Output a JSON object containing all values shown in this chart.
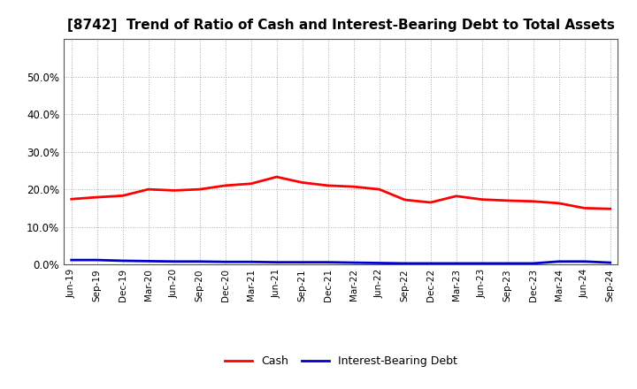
{
  "title": "[8742]  Trend of Ratio of Cash and Interest-Bearing Debt to Total Assets",
  "x_labels": [
    "Jun-19",
    "Sep-19",
    "Dec-19",
    "Mar-20",
    "Jun-20",
    "Sep-20",
    "Dec-20",
    "Mar-21",
    "Jun-21",
    "Sep-21",
    "Dec-21",
    "Mar-22",
    "Jun-22",
    "Sep-22",
    "Dec-22",
    "Mar-23",
    "Jun-23",
    "Sep-23",
    "Dec-23",
    "Mar-24",
    "Jun-24",
    "Sep-24"
  ],
  "cash": [
    0.174,
    0.179,
    0.183,
    0.2,
    0.197,
    0.2,
    0.21,
    0.215,
    0.233,
    0.218,
    0.21,
    0.207,
    0.2,
    0.172,
    0.165,
    0.182,
    0.173,
    0.17,
    0.168,
    0.163,
    0.15,
    0.148
  ],
  "debt": [
    0.012,
    0.012,
    0.01,
    0.009,
    0.008,
    0.008,
    0.007,
    0.007,
    0.006,
    0.006,
    0.006,
    0.005,
    0.004,
    0.003,
    0.003,
    0.003,
    0.003,
    0.003,
    0.003,
    0.008,
    0.008,
    0.005
  ],
  "cash_color": "#ff0000",
  "debt_color": "#0000cc",
  "ylim": [
    0.0,
    0.6
  ],
  "yticks": [
    0.0,
    0.1,
    0.2,
    0.3,
    0.4,
    0.5
  ],
  "background_color": "#ffffff",
  "grid_color": "#aaaaaa",
  "title_fontsize": 11,
  "legend_labels": [
    "Cash",
    "Interest-Bearing Debt"
  ]
}
